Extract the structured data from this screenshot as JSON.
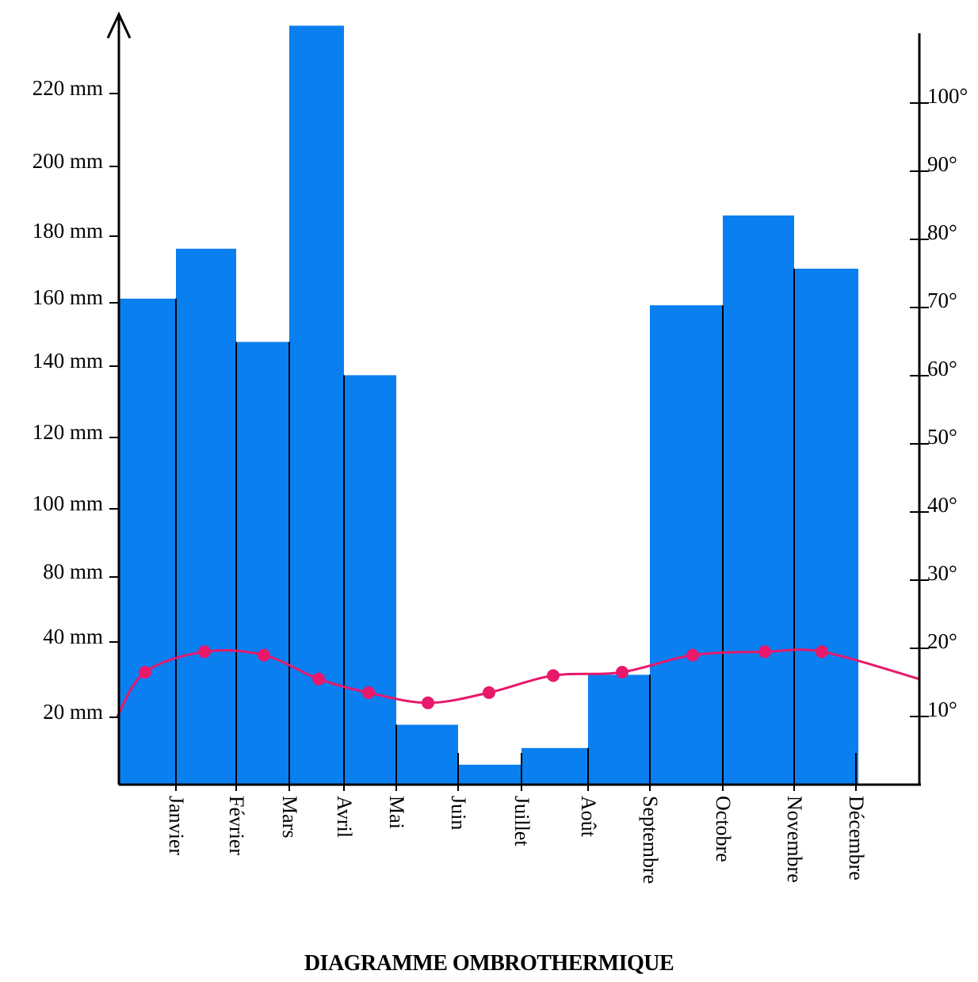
{
  "chart_data": {
    "type": "bar+line",
    "title": "DIAGRAMME OMBROTHERMIQUE",
    "categories": [
      "Janvier",
      "Février",
      "Mars",
      "Avril",
      "Mai",
      "Juin",
      "Juillet",
      "Août",
      "Septembre",
      "Octobre",
      "Novembre",
      "Décembre"
    ],
    "left_axis": {
      "ticks": [
        {
          "label": "20 mm"
        },
        {
          "label": "40 mm"
        },
        {
          "label": "80 mm"
        },
        {
          "label": "100 mm"
        },
        {
          "label": "120 mm"
        },
        {
          "label": "140 mm"
        },
        {
          "label": "160 mm"
        },
        {
          "label": "180 mm"
        },
        {
          "label": "200 mm"
        },
        {
          "label": "220 mm"
        }
      ]
    },
    "right_axis": {
      "ticks": [
        {
          "label": "10°",
          "value": 10
        },
        {
          "label": "20°",
          "value": 20
        },
        {
          "label": "30°",
          "value": 30
        },
        {
          "label": "40°",
          "value": 40
        },
        {
          "label": "50°",
          "value": 50
        },
        {
          "label": "60°",
          "value": 60
        },
        {
          "label": "70°",
          "value": 70
        },
        {
          "label": "80°",
          "value": 80
        },
        {
          "label": "90°",
          "value": 90
        },
        {
          "label": "100°",
          "value": 100
        }
      ],
      "ylim": [
        0,
        110
      ]
    },
    "series": [
      {
        "kind": "bar",
        "values": [
          146,
          161,
          133,
          228,
          123,
          18,
          6,
          11,
          33,
          144,
          171,
          155
        ],
        "color": "#0a7ff0"
      },
      {
        "kind": "line",
        "values": [
          16.5,
          19.5,
          19,
          15.5,
          13.5,
          12,
          13.5,
          16,
          16.5,
          19,
          19.5,
          19.5
        ],
        "start_value": 10,
        "end_value": 15.5,
        "color": "#e8186b"
      }
    ]
  }
}
